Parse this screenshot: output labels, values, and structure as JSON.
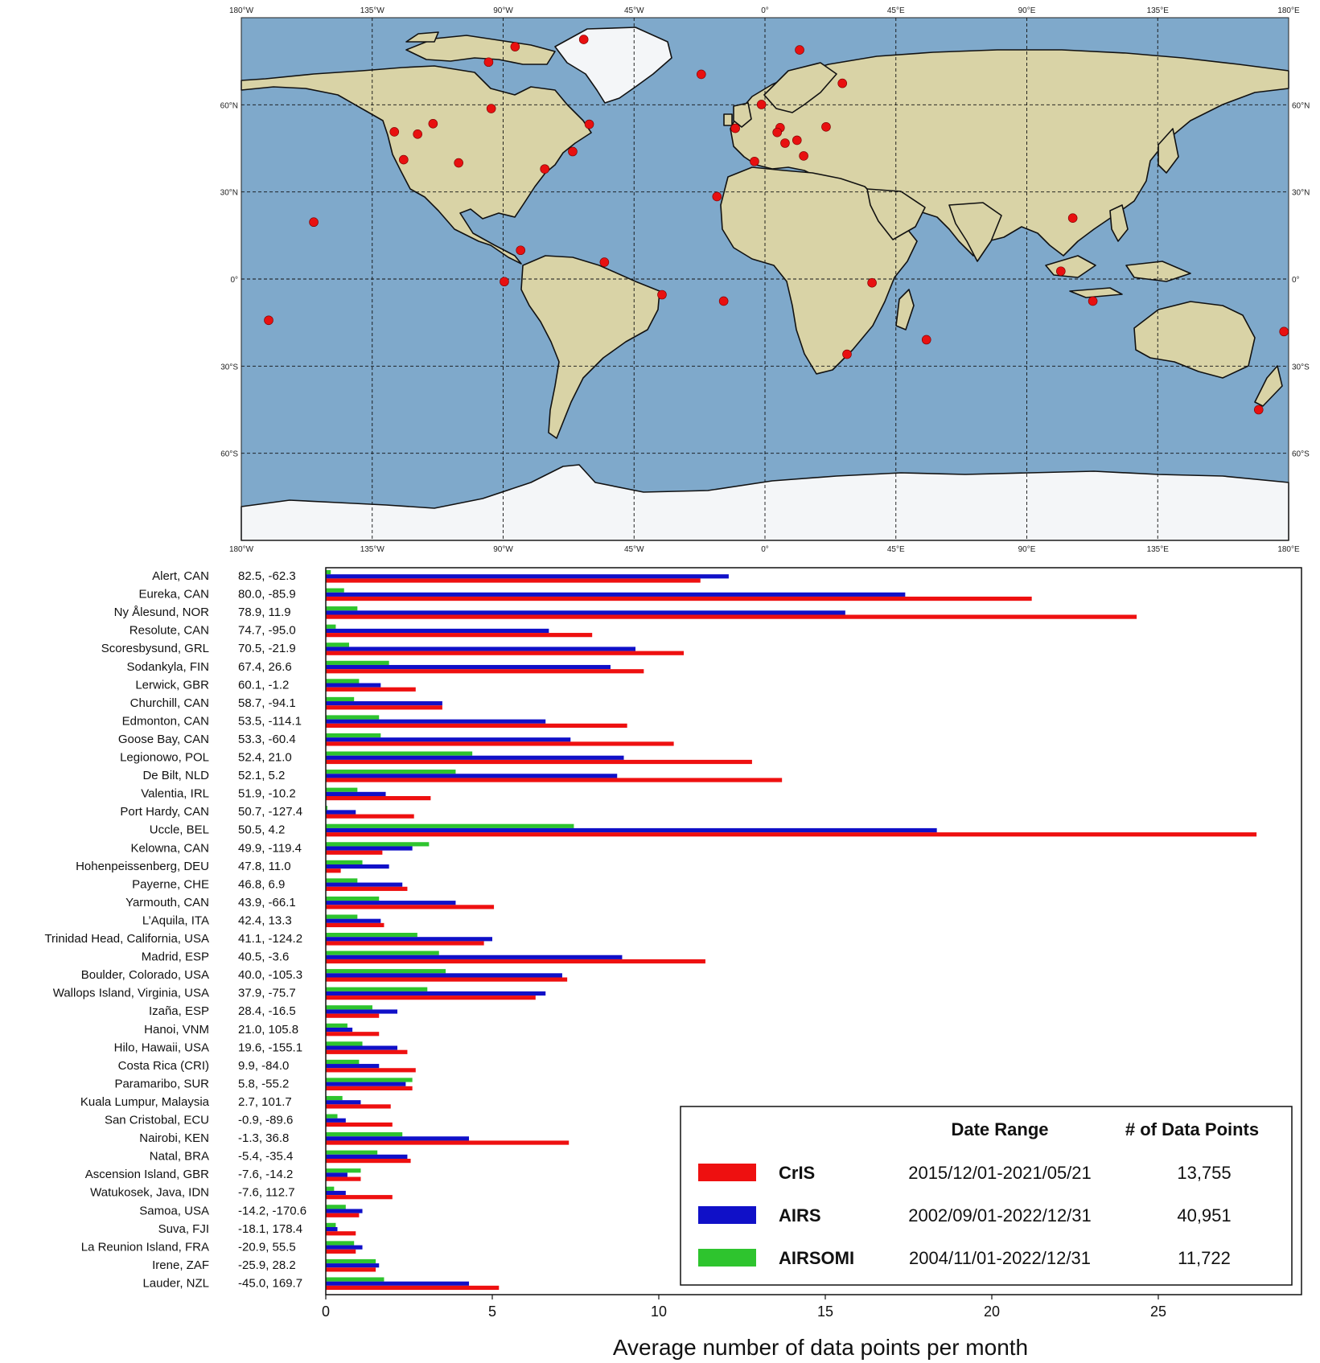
{
  "chart_data": [
    {
      "type": "scatter",
      "map_projection": "equirectangular",
      "xlim": [
        -180,
        180
      ],
      "ylim": [
        -90,
        90
      ],
      "lon_ticks": [
        "180°W",
        "135°W",
        "90°W",
        "45°W",
        "0°",
        "45°E",
        "90°E",
        "135°E",
        "180°E"
      ],
      "lat_ticks": [
        "60°N",
        "30°N",
        "0°",
        "30°S",
        "60°S"
      ],
      "grid": true,
      "marker_color": "#e81010",
      "points": [
        {
          "lat": 82.5,
          "lon": -62.3
        },
        {
          "lat": 80.0,
          "lon": -85.9
        },
        {
          "lat": 78.9,
          "lon": 11.9
        },
        {
          "lat": 74.7,
          "lon": -95.0
        },
        {
          "lat": 70.5,
          "lon": -21.9
        },
        {
          "lat": 67.4,
          "lon": 26.6
        },
        {
          "lat": 60.1,
          "lon": -1.2
        },
        {
          "lat": 58.7,
          "lon": -94.1
        },
        {
          "lat": 53.5,
          "lon": -114.1
        },
        {
          "lat": 53.3,
          "lon": -60.4
        },
        {
          "lat": 52.4,
          "lon": 21.0
        },
        {
          "lat": 52.1,
          "lon": 5.2
        },
        {
          "lat": 51.9,
          "lon": -10.2
        },
        {
          "lat": 50.7,
          "lon": -127.4
        },
        {
          "lat": 50.5,
          "lon": 4.2
        },
        {
          "lat": 49.9,
          "lon": -119.4
        },
        {
          "lat": 47.8,
          "lon": 11.0
        },
        {
          "lat": 46.8,
          "lon": 6.9
        },
        {
          "lat": 43.9,
          "lon": -66.1
        },
        {
          "lat": 42.4,
          "lon": 13.3
        },
        {
          "lat": 41.1,
          "lon": -124.2
        },
        {
          "lat": 40.5,
          "lon": -3.6
        },
        {
          "lat": 40.0,
          "lon": -105.3
        },
        {
          "lat": 37.9,
          "lon": -75.7
        },
        {
          "lat": 28.4,
          "lon": -16.5
        },
        {
          "lat": 21.0,
          "lon": 105.8
        },
        {
          "lat": 19.6,
          "lon": -155.1
        },
        {
          "lat": 9.9,
          "lon": -84.0
        },
        {
          "lat": 5.8,
          "lon": -55.2
        },
        {
          "lat": 2.7,
          "lon": 101.7
        },
        {
          "lat": -0.9,
          "lon": -89.6
        },
        {
          "lat": -1.3,
          "lon": 36.8
        },
        {
          "lat": -5.4,
          "lon": -35.4
        },
        {
          "lat": -7.6,
          "lon": -14.2
        },
        {
          "lat": -7.6,
          "lon": 112.7
        },
        {
          "lat": -14.2,
          "lon": -170.6
        },
        {
          "lat": -18.1,
          "lon": 178.4
        },
        {
          "lat": -20.9,
          "lon": 55.5
        },
        {
          "lat": -25.9,
          "lon": 28.2
        },
        {
          "lat": -45.0,
          "lon": 169.7
        }
      ]
    },
    {
      "type": "bar",
      "orientation": "horizontal",
      "xlabel": "Average number of data points per month",
      "xlim": [
        0,
        29.3
      ],
      "xticks": [
        0,
        5,
        10,
        15,
        20,
        25
      ],
      "categories": [
        "Alert, CAN",
        "Eureka, CAN",
        "Ny Ålesund, NOR",
        "Resolute, CAN",
        "Scoresbysund, GRL",
        "Sodankyla, FIN",
        "Lerwick, GBR",
        "Churchill, CAN",
        "Edmonton, CAN",
        "Goose Bay, CAN",
        "Legionowo, POL",
        "De Bilt, NLD",
        "Valentia, IRL",
        "Port Hardy, CAN",
        "Uccle, BEL",
        "Kelowna, CAN",
        "Hohenpeissenberg, DEU",
        "Payerne, CHE",
        "Yarmouth, CAN",
        "L’Aquila, ITA",
        "Trinidad Head, California, USA",
        "Madrid, ESP",
        "Boulder, Colorado, USA",
        "Wallops Island, Virginia, USA",
        "Izaña, ESP",
        "Hanoi, VNM",
        "Hilo, Hawaii, USA",
        "Costa Rica (CRI)",
        "Paramaribo, SUR",
        "Kuala Lumpur, Malaysia",
        "San Cristobal, ECU",
        "Nairobi, KEN",
        "Natal, BRA",
        "Ascension Island, GBR",
        "Watukosek, Java, IDN",
        "Samoa, USA",
        "Suva, FJI",
        "La Reunion Island, FRA",
        "Irene, ZAF",
        "Lauder, NZL"
      ],
      "coords": [
        "82.5, -62.3",
        "80.0, -85.9",
        "78.9, 11.9",
        "74.7, -95.0",
        "70.5, -21.9",
        "67.4, 26.6",
        "60.1, -1.2",
        "58.7, -94.1",
        "53.5, -114.1",
        "53.3, -60.4",
        "52.4, 21.0",
        "52.1, 5.2",
        "51.9, -10.2",
        "50.7, -127.4",
        "50.5, 4.2",
        "49.9, -119.4",
        "47.8, 11.0",
        "46.8, 6.9",
        "43.9, -66.1",
        "42.4, 13.3",
        "41.1, -124.2",
        "40.5, -3.6",
        "40.0, -105.3",
        "37.9, -75.7",
        "28.4, -16.5",
        "21.0, 105.8",
        "19.6, -155.1",
        "9.9, -84.0",
        "5.8, -55.2",
        "2.7, 101.7",
        "-0.9, -89.6",
        "-1.3, 36.8",
        "-5.4, -35.4",
        "-7.6, -14.2",
        "-7.6, 112.7",
        "-14.2, -170.6",
        "-18.1, 178.4",
        "-20.9, 55.5",
        "-25.9, 28.2",
        "-45.0, 169.7"
      ],
      "series": [
        {
          "name": "AIRSOMI",
          "color": "#2ec42e",
          "values": [
            0.15,
            0.55,
            0.95,
            0.3,
            0.7,
            1.9,
            1.0,
            0.85,
            1.6,
            1.65,
            4.4,
            3.9,
            0.95,
            0.05,
            7.45,
            3.1,
            1.1,
            0.95,
            1.6,
            0.95,
            2.75,
            3.4,
            3.6,
            3.05,
            1.4,
            0.65,
            1.1,
            1.0,
            2.6,
            0.5,
            0.35,
            2.3,
            1.55,
            1.05,
            0.25,
            0.6,
            0.3,
            0.85,
            1.5,
            1.75
          ]
        },
        {
          "name": "AIRS",
          "color": "#1010c8",
          "values": [
            12.1,
            17.4,
            15.6,
            6.7,
            9.3,
            8.55,
            1.65,
            3.5,
            6.6,
            7.35,
            8.95,
            8.75,
            1.8,
            0.9,
            18.35,
            2.6,
            1.9,
            2.3,
            3.9,
            1.65,
            5.0,
            8.9,
            7.1,
            6.6,
            2.15,
            0.8,
            2.15,
            1.6,
            2.4,
            1.05,
            0.6,
            4.3,
            2.45,
            0.65,
            0.6,
            1.1,
            0.35,
            1.1,
            1.6,
            4.3
          ]
        },
        {
          "name": "CrIS",
          "color": "#ee1010",
          "values": [
            11.25,
            21.2,
            24.35,
            8.0,
            10.75,
            9.55,
            2.7,
            3.5,
            9.05,
            10.45,
            12.8,
            13.7,
            3.15,
            2.65,
            27.95,
            1.7,
            0.45,
            2.45,
            5.05,
            1.75,
            4.75,
            11.4,
            7.25,
            6.3,
            1.6,
            1.6,
            2.45,
            2.7,
            2.6,
            1.95,
            2.0,
            7.3,
            2.55,
            1.05,
            2.0,
            1.0,
            0.9,
            0.9,
            1.5,
            5.2
          ]
        }
      ],
      "legend": {
        "placement": "bottom-right",
        "col_date": "Date Range",
        "col_count": "# of Data Points",
        "rows": [
          {
            "name": "CrIS",
            "color": "#ee1010",
            "range": "2015/12/01-2021/05/21",
            "count": "13,755"
          },
          {
            "name": "AIRS",
            "color": "#1010c8",
            "range": "2002/09/01-2022/12/31",
            "count": "40,951"
          },
          {
            "name": "AIRSOMI",
            "color": "#2ec42e",
            "range": "2004/11/01-2022/12/31",
            "count": "11,722"
          }
        ]
      }
    }
  ]
}
